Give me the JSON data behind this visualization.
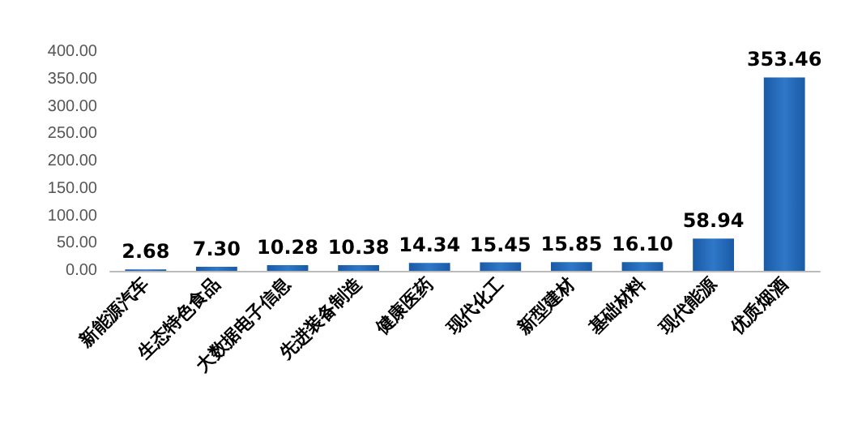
{
  "chart_data": {
    "type": "bar",
    "categories": [
      "新能源汽车",
      "生态特色食品",
      "大数据电子信息",
      "先进装备制造",
      "健康医药",
      "现代化工",
      "新型建材",
      "基础材料",
      "现代能源",
      "优质烟酒"
    ],
    "values": [
      2.68,
      7.3,
      10.28,
      10.38,
      14.34,
      15.45,
      15.85,
      16.1,
      58.94,
      353.46
    ],
    "value_labels": [
      "2.68",
      "7.30",
      "10.28",
      "10.38",
      "14.34",
      "15.45",
      "15.85",
      "16.10",
      "58.94",
      "353.46"
    ],
    "color": "#1a5aa6",
    "ylim": [
      0,
      400
    ],
    "yticks": [
      {
        "value": 0,
        "label": "0.00"
      },
      {
        "value": 50,
        "label": "50.00"
      },
      {
        "value": 100,
        "label": "100.00"
      },
      {
        "value": 150,
        "label": "150.00"
      },
      {
        "value": 200,
        "label": "200.00"
      },
      {
        "value": 250,
        "label": "250.00"
      },
      {
        "value": 300,
        "label": "300.00"
      },
      {
        "value": 350,
        "label": "350.00"
      },
      {
        "value": 400,
        "label": "400.00"
      }
    ]
  }
}
